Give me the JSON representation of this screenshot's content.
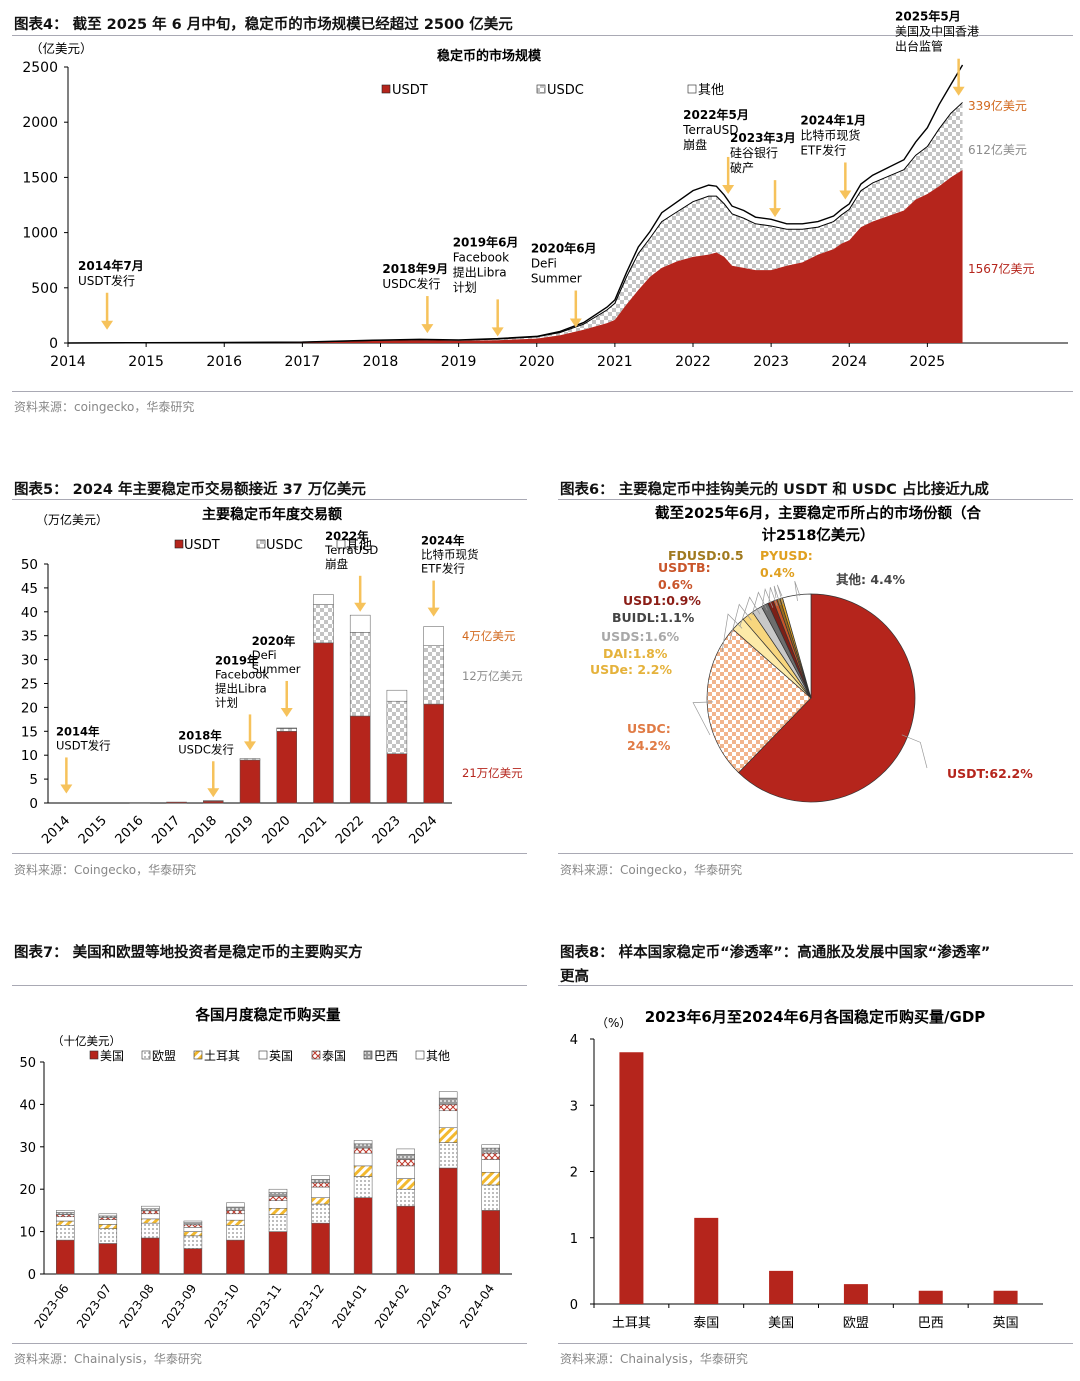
{
  "fig4": {
    "header": "图表4：  截至 2025 年 6 月中旬，稳定币的市场规模已经超过 2500 亿美元",
    "source": "资料来源：coingecko，华泰研究",
    "chart_data": {
      "type": "area",
      "title": "稳定币的市场规模",
      "ylabel": "（亿美元）",
      "ylim": [
        0,
        2500
      ],
      "yticks": [
        "0",
        "500",
        "1000",
        "1500",
        "2000",
        "2500"
      ],
      "xticks": [
        "2014",
        "2015",
        "2016",
        "2017",
        "2018",
        "2019",
        "2020",
        "2021",
        "2022",
        "2023",
        "2024",
        "2025"
      ],
      "x": [
        2014.0,
        2015.0,
        2016.0,
        2017.0,
        2017.9,
        2018.5,
        2019.0,
        2019.5,
        2020.0,
        2020.3,
        2020.6,
        2020.9,
        2021.0,
        2021.15,
        2021.3,
        2021.45,
        2021.6,
        2021.8,
        2022.0,
        2022.2,
        2022.3,
        2022.4,
        2022.5,
        2022.65,
        2022.8,
        2023.0,
        2023.2,
        2023.4,
        2023.6,
        2023.8,
        2023.9,
        2024.0,
        2024.15,
        2024.3,
        2024.5,
        2024.7,
        2024.85,
        2025.0,
        2025.15,
        2025.3,
        2025.45
      ],
      "series": [
        {
          "name": "USDT",
          "values": [
            0,
            3,
            5,
            8,
            20,
            25,
            20,
            25,
            40,
            70,
            120,
            180,
            210,
            350,
            480,
            600,
            680,
            740,
            780,
            800,
            820,
            780,
            700,
            680,
            660,
            660,
            700,
            730,
            800,
            850,
            900,
            930,
            1050,
            1100,
            1150,
            1200,
            1300,
            1350,
            1420,
            1500,
            1567
          ]
        },
        {
          "name": "USDC",
          "values": [
            0,
            0,
            0,
            0,
            3,
            5,
            5,
            10,
            15,
            25,
            50,
            120,
            150,
            250,
            330,
            350,
            420,
            450,
            500,
            530,
            510,
            480,
            470,
            450,
            420,
            400,
            330,
            300,
            250,
            250,
            260,
            280,
            330,
            350,
            360,
            370,
            400,
            430,
            520,
            580,
            612
          ]
        },
        {
          "name": "其他",
          "values": [
            0,
            0,
            0,
            0,
            2,
            3,
            3,
            5,
            5,
            10,
            15,
            25,
            30,
            40,
            60,
            60,
            80,
            90,
            100,
            100,
            90,
            80,
            70,
            70,
            60,
            60,
            50,
            50,
            50,
            50,
            50,
            50,
            60,
            70,
            80,
            90,
            120,
            170,
            220,
            260,
            339
          ]
        }
      ],
      "legend": [
        "USDT",
        "USDC",
        "其他"
      ],
      "end_labels": [
        "339亿美元",
        "612亿美元",
        "1567亿美元"
      ],
      "annotations": [
        {
          "x": 2014.5,
          "ytip": 120,
          "lines": [
            "2014年7月",
            "USDT发行"
          ]
        },
        {
          "x": 2018.6,
          "ytip": 90,
          "lines": [
            "2018年9月",
            "USDC发行"
          ]
        },
        {
          "x": 2019.5,
          "ytip": 60,
          "lines": [
            "2019年6月",
            "Facebook",
            "提出Libra",
            "计划"
          ]
        },
        {
          "x": 2020.5,
          "ytip": 140,
          "lines": [
            "2020年6月",
            "DeFi",
            "Summer"
          ]
        },
        {
          "x": 2022.45,
          "ytip": 1350,
          "lines": [
            "2022年5月",
            "TerraUSD",
            "崩盘"
          ]
        },
        {
          "x": 2023.05,
          "ytip": 1140,
          "lines": [
            "2023年3月",
            "硅谷银行",
            "破产"
          ]
        },
        {
          "x": 2023.95,
          "ytip": 1300,
          "lines": [
            "2024年1月",
            "比特币现货",
            "ETF发行"
          ]
        },
        {
          "x": 2025.4,
          "ytip": 2240,
          "lines": [
            "2025年5月",
            "美国及中国香港",
            "出台监管"
          ]
        }
      ]
    }
  },
  "fig5": {
    "header": "图表5：  2024 年主要稳定币交易额接近 37 万亿美元",
    "source": "资料来源：Coingecko，华泰研究",
    "chart_data": {
      "type": "bar",
      "title": "主要稳定币年度交易额",
      "ylabel": "（万亿美元）",
      "ylim": [
        0,
        50
      ],
      "yticks": [
        "0",
        "5",
        "10",
        "15",
        "20",
        "25",
        "30",
        "35",
        "40",
        "45",
        "50"
      ],
      "categories": [
        "2014",
        "2015",
        "2016",
        "2017",
        "2018",
        "2019",
        "2020",
        "2021",
        "2022",
        "2023",
        "2024"
      ],
      "series": [
        {
          "name": "USDT",
          "values": [
            0,
            0,
            0.1,
            0.2,
            0.4,
            9,
            15,
            33.5,
            18.2,
            10.3,
            20.7
          ]
        },
        {
          "name": "USDC",
          "values": [
            0,
            0,
            0,
            0,
            0.1,
            0.3,
            0.6,
            8,
            17.5,
            11,
            12.2
          ]
        },
        {
          "name": "其他",
          "values": [
            0,
            0,
            0,
            0,
            0,
            0,
            0.1,
            2.1,
            3.6,
            2.3,
            4
          ]
        }
      ],
      "legend": [
        "USDT",
        "USDC",
        "其他"
      ],
      "side_labels": [
        "4万亿美元",
        "12万亿美元",
        "21万亿美元"
      ],
      "annotations": [
        {
          "cat": 0,
          "ytip": 2,
          "lines": [
            "2014年",
            "USDT发行"
          ]
        },
        {
          "cat": 4,
          "ytip": 1.2,
          "lines": [
            "2018年",
            "USDC发行"
          ]
        },
        {
          "cat": 5,
          "ytip": 11,
          "lines": [
            "2019年",
            "Facebook",
            "提出Libra",
            "计划"
          ]
        },
        {
          "cat": 6,
          "ytip": 18,
          "lines": [
            "2020年",
            "DeFi",
            "Summer"
          ]
        },
        {
          "cat": 8,
          "ytip": 40,
          "lines": [
            "2022年",
            "TerraUSD",
            "崩盘"
          ]
        },
        {
          "cat": 10,
          "ytip": 39,
          "lines": [
            "2024年",
            "比特币现货",
            "ETF发行"
          ]
        }
      ]
    }
  },
  "fig6": {
    "header": "图表6：  主要稳定币中挂钩美元的 USDT 和 USDC 占比接近九成",
    "source": "资料来源：Coingecko，华泰研究",
    "chart_data": {
      "type": "pie",
      "title_lines": [
        "截至2025年6月，主要稳定币所占的市场份额（合",
        "计2518亿美元）"
      ],
      "slices": [
        {
          "name": "USDT",
          "label": "USDT:62.2%",
          "value": 62.2,
          "color": "#b5251c"
        },
        {
          "name": "USDC",
          "label_lines": [
            "USDC:",
            "24.2%"
          ],
          "value": 24.2,
          "color": "#f2b48c"
        },
        {
          "name": "USDe",
          "label": "USDe: 2.2%",
          "value": 2.2,
          "color": "#fdeaa8"
        },
        {
          "name": "DAI",
          "label": "DAI:1.8%",
          "value": 1.8,
          "color": "#f7d67e"
        },
        {
          "name": "USDS",
          "label": "USDS:1.6%",
          "value": 1.6,
          "color": "#c8c8c8"
        },
        {
          "name": "BUIDL",
          "label": "BUIDL:1.1%",
          "value": 1.1,
          "color": "#6d6d6d"
        },
        {
          "name": "USD1",
          "label": "USD1:0.9%",
          "value": 0.9,
          "color": "#7c1f17"
        },
        {
          "name": "USDTB",
          "label_lines": [
            "USDTB:",
            "0.6%"
          ],
          "value": 0.6,
          "color": "#c9552a"
        },
        {
          "name": "FDUSD",
          "label": "FDUSD:0.5",
          "value": 0.5,
          "color": "#9a6a1e"
        },
        {
          "name": "PYUSD",
          "label_lines": [
            "PYUSD:",
            "0.4%"
          ],
          "value": 0.4,
          "color": "#e0a020"
        },
        {
          "name": "其他",
          "label": "其他: 4.4%",
          "value": 4.4,
          "color": "#ffffff"
        }
      ]
    }
  },
  "fig7": {
    "header": "图表7：  美国和欧盟等地投资者是稳定币的主要购买方",
    "source": "资料来源：Chainalysis，华泰研究",
    "chart_data": {
      "type": "bar",
      "title": "各国月度稳定币购买量",
      "ylabel": "（十亿美元）",
      "ylim": [
        0,
        50
      ],
      "yticks": [
        "0",
        "10",
        "20",
        "30",
        "40",
        "50"
      ],
      "categories": [
        "2023-06",
        "2023-07",
        "2023-08",
        "2023-09",
        "2023-10",
        "2023-11",
        "2023-12",
        "2024-01",
        "2024-02",
        "2024-03",
        "2024-04"
      ],
      "series": [
        {
          "name": "美国",
          "values": [
            8,
            7.2,
            8.5,
            6,
            8,
            10,
            12,
            18,
            16,
            25,
            15
          ]
        },
        {
          "name": "欧盟",
          "values": [
            3.5,
            3.5,
            3.5,
            3,
            3.5,
            4,
            4.5,
            5,
            4,
            6,
            6
          ]
        },
        {
          "name": "土耳其",
          "values": [
            1,
            1,
            1,
            1,
            1.2,
            1.5,
            1.5,
            2.5,
            2.5,
            3.5,
            3
          ]
        },
        {
          "name": "英国",
          "values": [
            1,
            1.1,
            1.2,
            1,
            1.5,
            1.8,
            2.5,
            3,
            3,
            4,
            3
          ]
        },
        {
          "name": "泰国",
          "values": [
            0.5,
            0.5,
            0.7,
            0.6,
            0.8,
            1,
            1,
            1.2,
            1.5,
            1.5,
            1.5
          ]
        },
        {
          "name": "巴西",
          "values": [
            0.5,
            0.4,
            0.5,
            0.5,
            0.8,
            0.9,
            0.8,
            1,
            1.2,
            1.5,
            1.2
          ]
        },
        {
          "name": "其他",
          "values": [
            0.5,
            0.5,
            0.6,
            0.4,
            1,
            0.8,
            0.9,
            0.8,
            1.3,
            1.5,
            0.8
          ]
        }
      ],
      "legend": [
        "美国",
        "欧盟",
        "土耳其",
        "英国",
        "泰国",
        "巴西",
        "其他"
      ]
    }
  },
  "fig8": {
    "header_lines": [
      "图表8：  样本国家稳定币“渗透率”：高通胀及发展中国家“渗透率”",
      "更高"
    ],
    "source": "资料来源：Chainalysis，华泰研究",
    "chart_data": {
      "type": "bar",
      "title": "2023年6月至2024年6月各国稳定币购买量/GDP",
      "ylabel": "（%）",
      "ylim": [
        0,
        4
      ],
      "yticks": [
        "0",
        "1",
        "2",
        "3",
        "4"
      ],
      "categories": [
        "土耳其",
        "泰国",
        "美国",
        "欧盟",
        "巴西",
        "英国"
      ],
      "values": [
        3.8,
        1.3,
        0.5,
        0.3,
        0.2,
        0.2
      ]
    }
  }
}
